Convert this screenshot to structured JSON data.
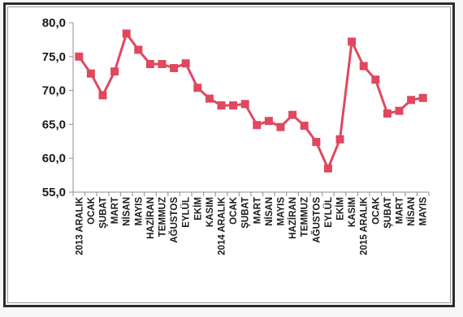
{
  "chart_data": {
    "type": "line",
    "title": "",
    "xlabel": "",
    "ylabel": "",
    "ylim": [
      55,
      80
    ],
    "yticks": [
      "80,0",
      "75,0",
      "70,0",
      "65,0",
      "60,0",
      "55,0"
    ],
    "ytick_values": [
      80,
      75,
      70,
      65,
      60,
      55
    ],
    "categories": [
      "2013 ARALIK",
      "OCAK",
      "ŞUBAT",
      "MART",
      "NİSAN",
      "MAYIS",
      "HAZİRAN",
      "TEMMUZ",
      "AĞUSTOS",
      "EYLÜL",
      "EKİM",
      "KASIM",
      "2014 ARALIK",
      "OCAK",
      "ŞUBAT",
      "MART",
      "NİSAN",
      "MAYIS",
      "HAZİRAN",
      "TEMMUZ",
      "AĞUSTOS",
      "EYLÜL",
      "EKİM",
      "KASIM",
      "2015 ARALIK",
      "OCAK",
      "ŞUBAT",
      "MART",
      "NİSAN",
      "MAYIS"
    ],
    "series": [
      {
        "values": [
          75.0,
          72.5,
          69.3,
          72.8,
          78.4,
          76.0,
          73.9,
          73.9,
          73.3,
          74.0,
          70.4,
          68.8,
          67.8,
          67.8,
          68.0,
          64.9,
          65.5,
          64.6,
          66.4,
          64.8,
          62.4,
          58.5,
          62.8,
          77.2,
          73.6,
          71.6,
          66.6,
          67.0,
          68.6,
          68.9
        ],
        "color": "#e0485f"
      }
    ],
    "grid": false,
    "legend": "none"
  }
}
